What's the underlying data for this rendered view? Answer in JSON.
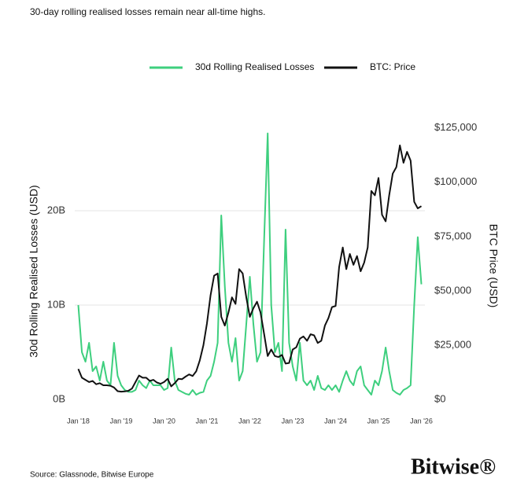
{
  "chart_data": {
    "type": "line",
    "title": "30-day rolling realised losses remain near all-time highs.",
    "y_label": "30d Rolling Realised Losses (USD)",
    "y2_label": "BTC Price (USD)",
    "source": "Source: Glassnode, Bitwise Europe",
    "logo": "Bitwise®",
    "x": [
      "2018-01",
      "2018-02",
      "2018-03",
      "2018-04",
      "2018-05",
      "2018-06",
      "2018-07",
      "2018-08",
      "2018-09",
      "2018-10",
      "2018-11",
      "2018-12",
      "2019-01",
      "2019-02",
      "2019-03",
      "2019-04",
      "2019-05",
      "2019-06",
      "2019-07",
      "2019-08",
      "2019-09",
      "2019-10",
      "2019-11",
      "2019-12",
      "2020-01",
      "2020-02",
      "2020-03",
      "2020-04",
      "2020-05",
      "2020-06",
      "2020-07",
      "2020-08",
      "2020-09",
      "2020-10",
      "2020-11",
      "2020-12",
      "2021-01",
      "2021-02",
      "2021-03",
      "2021-04",
      "2021-05",
      "2021-06",
      "2021-07",
      "2021-08",
      "2021-09",
      "2021-10",
      "2021-11",
      "2021-12",
      "2022-01",
      "2022-02",
      "2022-03",
      "2022-04",
      "2022-05",
      "2022-06",
      "2022-07",
      "2022-08",
      "2022-09",
      "2022-10",
      "2022-11",
      "2022-12",
      "2023-01",
      "2023-02",
      "2023-03",
      "2023-04",
      "2023-05",
      "2023-06",
      "2023-07",
      "2023-08",
      "2023-09",
      "2023-10",
      "2023-11",
      "2023-12",
      "2024-01",
      "2024-02",
      "2024-03",
      "2024-04",
      "2024-05",
      "2024-06",
      "2024-07",
      "2024-08",
      "2024-09",
      "2024-10",
      "2024-11",
      "2024-12",
      "2025-01",
      "2025-02",
      "2025-03",
      "2025-04",
      "2025-05",
      "2025-06",
      "2025-07",
      "2025-08",
      "2025-09",
      "2025-10",
      "2025-11",
      "2025-12",
      "2026-01"
    ],
    "series": [
      {
        "name": "30d Rolling Realised Losses",
        "color": "#3ecf7e",
        "axis": "y",
        "values": [
          10,
          5,
          4,
          6,
          3,
          3.5,
          2,
          4,
          2,
          1.5,
          6,
          2.5,
          1.5,
          1,
          0.8,
          0.8,
          1,
          2,
          1.5,
          1.2,
          2,
          1.5,
          1.5,
          1.5,
          1,
          1.2,
          5.5,
          2,
          1,
          0.8,
          0.6,
          0.5,
          1,
          0.5,
          0.7,
          0.8,
          2,
          2.5,
          4,
          6,
          19.5,
          12,
          6,
          4,
          6.5,
          2,
          3,
          8,
          13,
          8,
          4,
          5,
          17,
          28.2,
          10,
          5,
          6,
          3,
          18,
          6,
          3.5,
          2,
          6,
          2,
          1.5,
          2,
          1,
          2.5,
          1.2,
          1,
          1.5,
          1,
          1.5,
          0.8,
          2,
          3,
          2,
          1.5,
          3,
          3.5,
          1.5,
          1,
          0.5,
          2,
          1.5,
          3,
          5.5,
          3,
          1,
          0.7,
          0.5,
          1,
          1.2,
          1.5,
          10,
          17.2,
          12.2
        ]
      },
      {
        "name": "BTC: Price",
        "color": "#111111",
        "axis": "y2",
        "values": [
          14000,
          10000,
          9000,
          8000,
          8500,
          7000,
          7500,
          6500,
          6500,
          6300,
          5500,
          3800,
          3600,
          3700,
          4000,
          5000,
          8000,
          11000,
          10000,
          10000,
          8500,
          9000,
          7800,
          7200,
          8000,
          9500,
          6000,
          7500,
          9500,
          9300,
          10500,
          11500,
          10800,
          13000,
          18000,
          25000,
          35000,
          48000,
          57000,
          58000,
          38000,
          34000,
          40000,
          47000,
          44000,
          60000,
          58000,
          47000,
          38000,
          42000,
          45000,
          40000,
          30000,
          20000,
          23000,
          20000,
          19500,
          20500,
          16500,
          16800,
          23000,
          24000,
          28000,
          29000,
          27000,
          30000,
          29500,
          26000,
          27000,
          34000,
          37500,
          42500,
          43000,
          61000,
          70000,
          60000,
          67000,
          62000,
          66000,
          59000,
          63000,
          70000,
          96000,
          94000,
          102000,
          85000,
          82000,
          94000,
          104000,
          107000,
          117000,
          109000,
          114000,
          110000,
          91000,
          88000,
          89000
        ]
      }
    ],
    "xlim": [
      "2017-12",
      "2026-02"
    ],
    "xticks": [
      {
        "value": "2018-01",
        "label": "Jan '18"
      },
      {
        "value": "2019-01",
        "label": "Jan '19"
      },
      {
        "value": "2020-01",
        "label": "Jan '20"
      },
      {
        "value": "2021-01",
        "label": "Jan '21"
      },
      {
        "value": "2022-01",
        "label": "Jan '22"
      },
      {
        "value": "2023-01",
        "label": "Jan '23"
      },
      {
        "value": "2024-01",
        "label": "Jan '24"
      },
      {
        "value": "2025-01",
        "label": "Jan '25"
      },
      {
        "value": "2026-01",
        "label": "Jan '26"
      }
    ],
    "ylim": [
      0,
      29
    ],
    "yticks": [
      {
        "value": 0,
        "label": "0B"
      },
      {
        "value": 10,
        "label": "10B"
      },
      {
        "value": 20,
        "label": "20B"
      }
    ],
    "y2lim": [
      0,
      126000
    ],
    "y2ticks": [
      {
        "value": 0,
        "label": "$0"
      },
      {
        "value": 25000,
        "label": "$25,000"
      },
      {
        "value": 50000,
        "label": "$50,000"
      },
      {
        "value": 75000,
        "label": "$75,000"
      },
      {
        "value": 100000,
        "label": "$100,000"
      },
      {
        "value": 125000,
        "label": "$125,000"
      }
    ],
    "grid": true,
    "legend": "top"
  }
}
